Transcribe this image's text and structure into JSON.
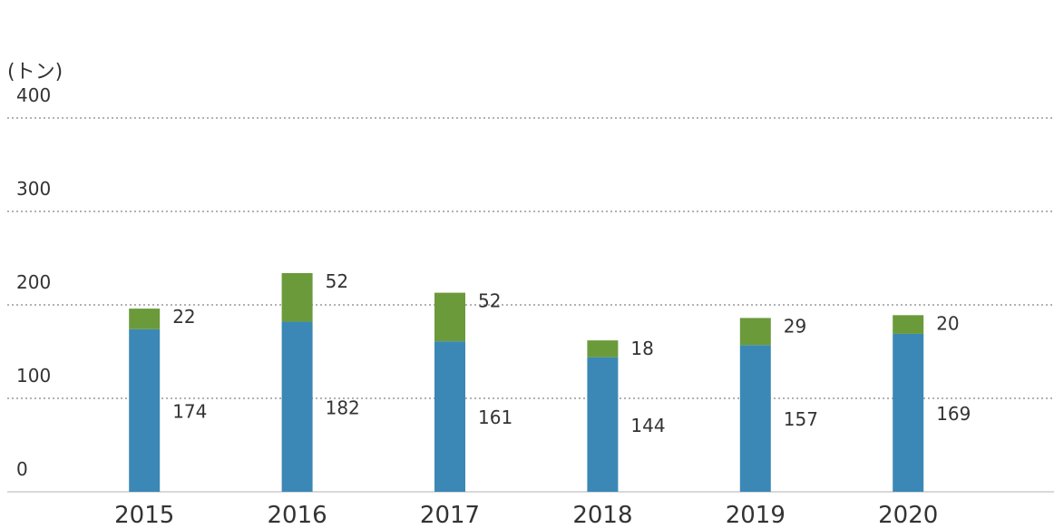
{
  "chart_data": {
    "type": "stacked_bar",
    "y_label": "(トン)",
    "categories": [
      "2015",
      "2016",
      "2017",
      "2018",
      "2019",
      "2020"
    ],
    "series": [
      {
        "color": "#3b88b6",
        "values": [
          174,
          182,
          161,
          144,
          157,
          169
        ]
      },
      {
        "color": "#6b9a3b",
        "values": [
          22,
          52,
          52,
          18,
          29,
          20
        ]
      }
    ],
    "ylim": [
      0,
      400
    ],
    "yticks": [
      0,
      100,
      200,
      300,
      400
    ],
    "grid": true
  }
}
